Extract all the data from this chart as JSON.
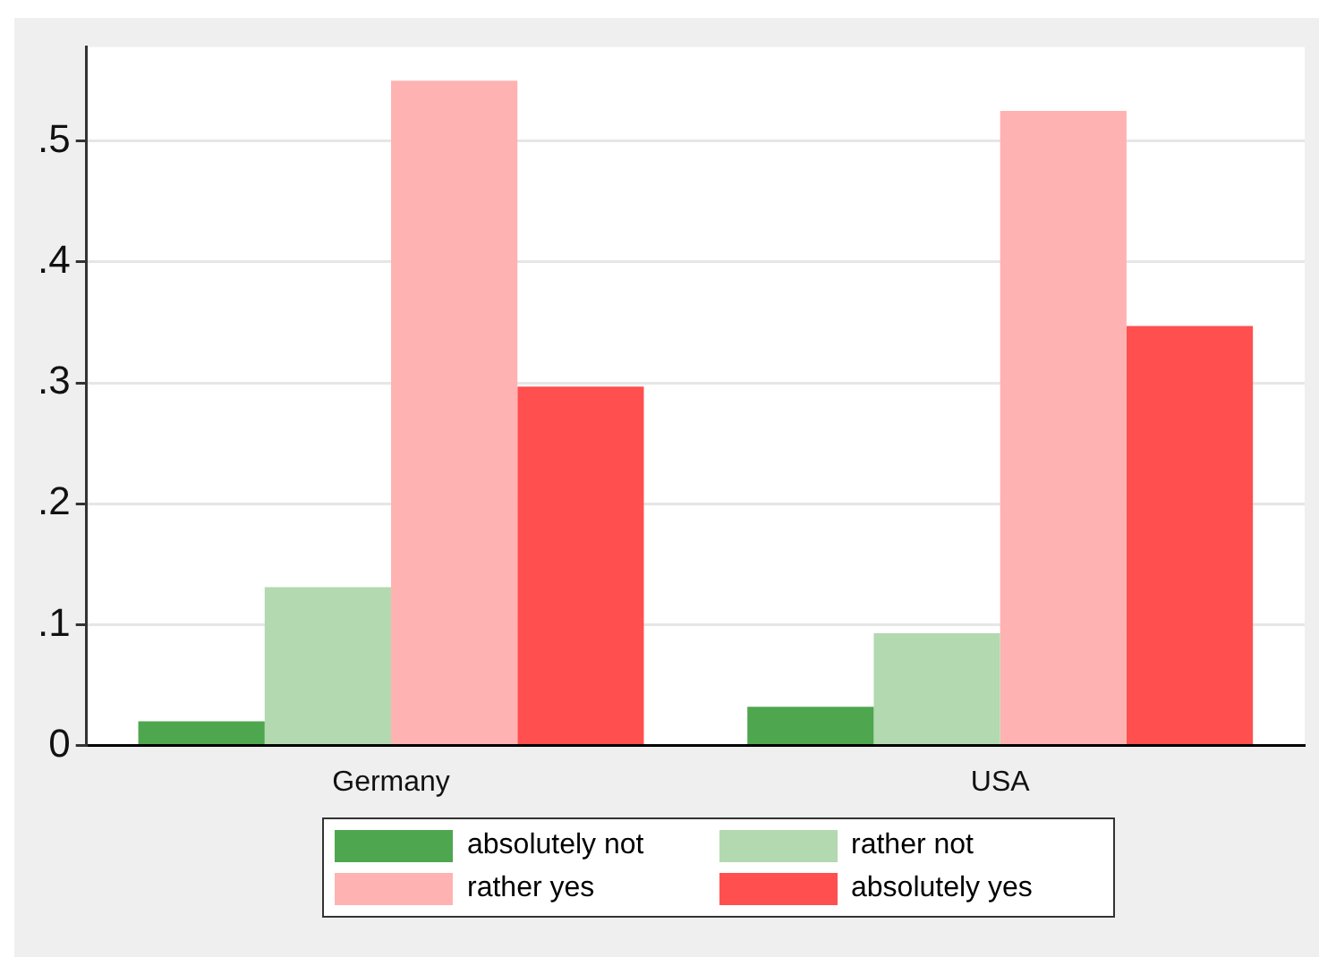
{
  "chart_data": {
    "type": "bar",
    "categories": [
      "Germany",
      "USA"
    ],
    "series": [
      {
        "name": "absolutely not",
        "color": "#4ea64e",
        "values": [
          0.02,
          0.032
        ]
      },
      {
        "name": "rather not",
        "color": "#b2d9b0",
        "values": [
          0.131,
          0.093
        ]
      },
      {
        "name": "rather yes",
        "color": "#ffb2b2",
        "values": [
          0.55,
          0.525
        ]
      },
      {
        "name": "absolutely yes",
        "color": "#ff4f4f",
        "values": [
          0.297,
          0.347
        ]
      }
    ],
    "ylim": [
      0,
      0.578
    ],
    "yticks": [
      0,
      {
        "value": 0.1,
        "label": ".1"
      },
      {
        "value": 0.2,
        "label": ".2"
      },
      {
        "value": 0.3,
        "label": ".3"
      },
      {
        "value": 0.4,
        "label": ".4"
      },
      {
        "value": 0.5,
        "label": ".5"
      }
    ],
    "grid": "y",
    "legend": "bottom"
  }
}
